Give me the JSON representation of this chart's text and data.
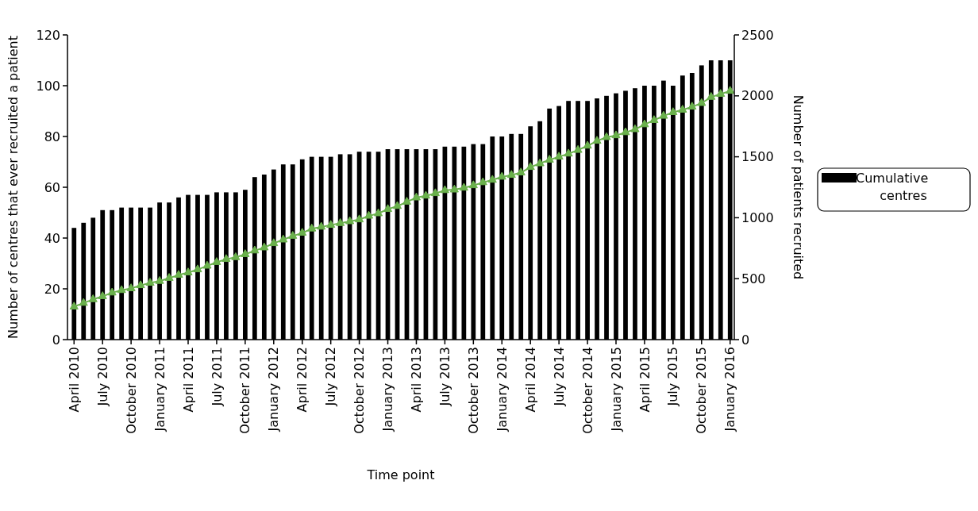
{
  "chart_data": {
    "type": "bar",
    "xlabel": "Time point",
    "ylabel": "Number of centres that ever recruited a patient",
    "y2label": "Number of patients recruited",
    "categories": [
      "April 2010",
      null,
      null,
      "July 2010",
      null,
      null,
      "October 2010",
      null,
      null,
      "January 2011",
      null,
      null,
      "April 2011",
      null,
      null,
      "July 2011",
      null,
      null,
      "October 2011",
      null,
      null,
      "January 2012",
      null,
      null,
      "April 2012",
      null,
      null,
      "July 2012",
      null,
      null,
      "October 2012",
      null,
      null,
      "January 2013",
      null,
      null,
      "April 2013",
      null,
      null,
      "July 2013",
      null,
      null,
      "October 2013",
      null,
      null,
      "January 2014",
      null,
      null,
      "April 2014",
      null,
      null,
      "July 2014",
      null,
      null,
      "October 2014",
      null,
      null,
      "January 2015",
      null,
      null,
      "April 2015",
      null,
      null,
      "July 2015",
      null,
      null,
      "October 2015",
      null,
      null,
      "January 2016"
    ],
    "series": [
      {
        "name": "Cumulative centres",
        "color": "#000000",
        "values": [
          44,
          46,
          48,
          51,
          51,
          52,
          52,
          52,
          52,
          54,
          54,
          56,
          57,
          57,
          57,
          58,
          58,
          58,
          59,
          64,
          65,
          67,
          69,
          69,
          71,
          72,
          72,
          72,
          73,
          73,
          74,
          74,
          74,
          75,
          75,
          75,
          75,
          75,
          75,
          76,
          76,
          76,
          77,
          77,
          80,
          80,
          81,
          81,
          84,
          86,
          91,
          92,
          94,
          94,
          94,
          95,
          96,
          97,
          98,
          99,
          100,
          100,
          102,
          100,
          104,
          105,
          108,
          110,
          110,
          110
        ]
      },
      {
        "type": "line",
        "axis": "y2",
        "color": "#6ab04c",
        "marker": "triangle",
        "values": [
          270,
          300,
          330,
          355,
          385,
          405,
          420,
          445,
          465,
          480,
          505,
          530,
          550,
          575,
          605,
          635,
          660,
          675,
          700,
          730,
          755,
          790,
          820,
          850,
          875,
          910,
          925,
          940,
          955,
          970,
          985,
          1015,
          1035,
          1070,
          1095,
          1130,
          1165,
          1180,
          1200,
          1225,
          1230,
          1245,
          1265,
          1290,
          1310,
          1335,
          1350,
          1370,
          1415,
          1445,
          1475,
          1500,
          1525,
          1555,
          1590,
          1630,
          1660,
          1675,
          1700,
          1725,
          1765,
          1800,
          1835,
          1865,
          1885,
          1910,
          1940,
          1990,
          2015,
          2040
        ]
      }
    ],
    "ylim": [
      0,
      120
    ],
    "yticks": [
      0,
      20,
      40,
      60,
      80,
      100,
      120
    ],
    "y2lim": [
      0,
      2500
    ],
    "y2ticks": [
      0,
      500,
      1000,
      1500,
      2000,
      2500
    ],
    "legend": "right",
    "grid": false
  }
}
